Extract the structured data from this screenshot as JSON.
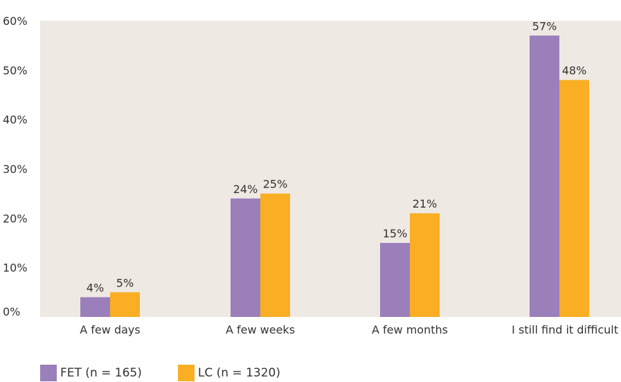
{
  "chart_data": {
    "type": "bar",
    "categories": [
      "A few days",
      "A few weeks",
      "A few months",
      "I still find it difficult"
    ],
    "series": [
      {
        "name": "FET (n = 165)",
        "values": [
          4,
          24,
          15,
          57
        ],
        "labels": [
          "4%",
          "24%",
          "15%",
          "57%"
        ],
        "color": "#9b7fba"
      },
      {
        "name": "LC (n = 1320)",
        "values": [
          5,
          25,
          21,
          48
        ],
        "labels": [
          "5%",
          "25%",
          "21%",
          "48%"
        ],
        "color": "#f9ae24"
      }
    ],
    "ylim": [
      0,
      60
    ],
    "yticks": [
      0,
      10,
      20,
      30,
      40,
      50,
      60
    ],
    "ytick_labels": [
      "0%",
      "10%",
      "20%",
      "30%",
      "40%",
      "50%",
      "60%"
    ],
    "plot_background": "#efe9e3",
    "grid": false,
    "legend_position": "bottom-left"
  }
}
